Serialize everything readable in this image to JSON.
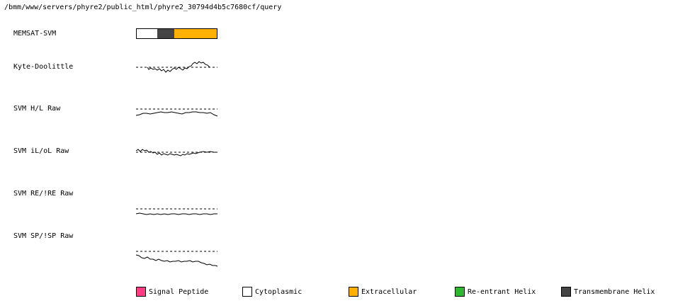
{
  "header": {
    "path": "/bmm/www/servers/phyre2/public_html/phyre2_30794d4b5c7680cf/query"
  },
  "rows": [
    {
      "label": "MEMSAT-SVM"
    },
    {
      "label": "Kyte-Doolittle"
    },
    {
      "label": "SVM H/L Raw"
    },
    {
      "label": "SVM iL/oL Raw"
    },
    {
      "label": "SVM RE/!RE Raw"
    },
    {
      "label": "SVM SP/!SP Raw"
    }
  ],
  "memsat_segments": [
    {
      "type": "Cytoplasmic",
      "fraction": 0.26,
      "color": "#ffffff"
    },
    {
      "type": "Transmembrane Helix",
      "fraction": 0.21,
      "color": "#444444"
    },
    {
      "type": "Extracellular",
      "fraction": 0.53,
      "color": "#ffb000"
    }
  ],
  "legend": [
    {
      "label": "Signal Peptide",
      "color": "#ff3c84"
    },
    {
      "label": "Cytoplasmic",
      "color": "#ffffff"
    },
    {
      "label": "Extracellular",
      "color": "#ffb000"
    },
    {
      "label": "Re-entrant Helix",
      "color": "#2db82d"
    },
    {
      "label": "Transmembrane Helix",
      "color": "#444444"
    }
  ]
}
